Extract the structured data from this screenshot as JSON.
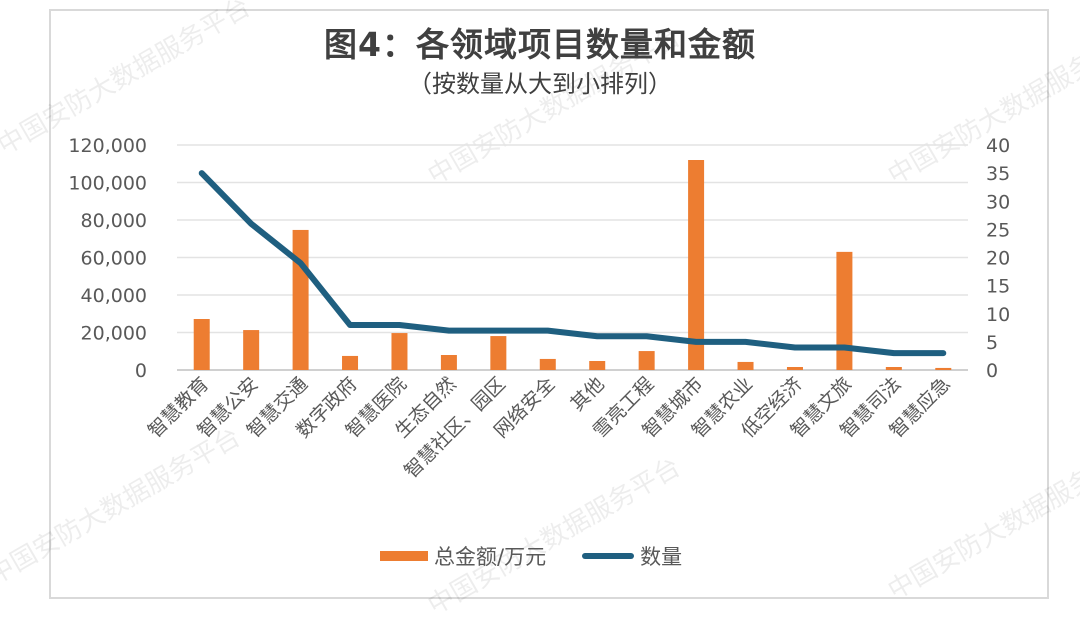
{
  "watermark": "中国安防大数据服务平台",
  "chart_data": {
    "type": "bar+line",
    "title": "图4：各领域项目数量和金额",
    "subtitle": "（按数量从大到小排列）",
    "categories": [
      "智慧教育",
      "智慧公安",
      "智慧交通",
      "数字政府",
      "智慧医院",
      "生态自然",
      "智慧社区、园区",
      "网络安全",
      "其他",
      "雪亮工程",
      "智慧城市",
      "智慧农业",
      "低空经济",
      "智慧文旅",
      "智慧司法",
      "智慧应急"
    ],
    "series": [
      {
        "name": "总金额/万元",
        "type": "bar",
        "axis": "left",
        "color": "#ED7D31",
        "values": [
          27200,
          21300,
          74700,
          7500,
          19700,
          8000,
          18100,
          5900,
          4800,
          10100,
          112000,
          4300,
          1600,
          63000,
          1600,
          1100
        ]
      },
      {
        "name": "数量",
        "type": "line",
        "axis": "right",
        "color": "#1F5F80",
        "values": [
          35,
          26,
          19,
          8,
          8,
          7,
          7,
          7,
          6,
          6,
          5,
          5,
          4,
          4,
          3,
          3
        ]
      }
    ],
    "y_left": {
      "min": 0,
      "max": 120000,
      "ticks": [
        "0",
        "20,000",
        "40,000",
        "60,000",
        "80,000",
        "100,000",
        "120,000"
      ]
    },
    "y_right": {
      "min": 0,
      "max": 40,
      "ticks": [
        "0",
        "5",
        "10",
        "15",
        "20",
        "25",
        "30",
        "35",
        "40"
      ]
    },
    "grid": true,
    "legend_position": "bottom"
  },
  "legend": {
    "bar_label": "总金额/万元",
    "line_label": "数量"
  }
}
